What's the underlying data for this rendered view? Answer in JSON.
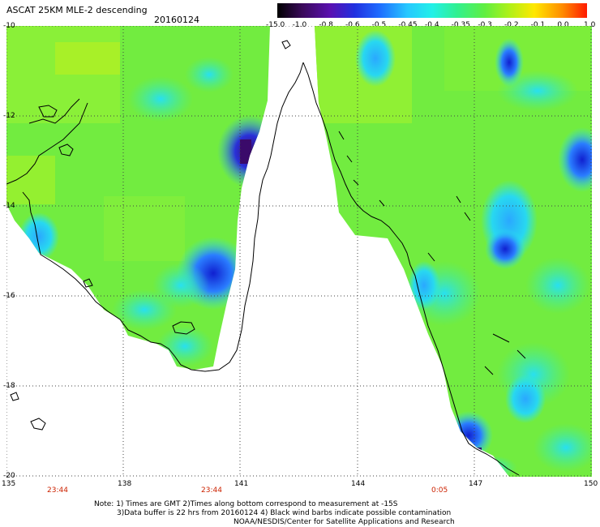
{
  "header": {
    "title": "ASCAT 25KM MLE-2 descending",
    "date": "20160124"
  },
  "colorbar": {
    "labels": [
      "-15.0",
      "-1.0",
      "-0.8",
      "-0.6",
      "-0.5",
      "-0.45",
      "-0.4",
      "-0.35",
      "-0.3",
      "-0.2",
      "-0.1",
      "0.0",
      "1.0"
    ],
    "colors": [
      "#2a0a3a",
      "#5a0f8a",
      "#3b1fd0",
      "#1f5cff",
      "#2aa8ff",
      "#28e8f0",
      "#3cf5a0",
      "#4cf060",
      "#7cf028",
      "#c8f014",
      "#ffe800",
      "#ff8800",
      "#ff2a00"
    ]
  },
  "map": {
    "lat_labels": [
      "-10",
      "-12",
      "-14",
      "-16",
      "-18",
      "-20"
    ],
    "lon_labels": [
      "135",
      "138",
      "141",
      "144",
      "147",
      "150"
    ],
    "time_labels": [
      "23:44",
      "23:44",
      "0:05"
    ],
    "land_color": "#ffffff",
    "ocean_color": "#7ced4a"
  },
  "footer": {
    "note1": "Note: 1) Times are GMT 2)Times along bottom correspond to measurement at -15S",
    "note2": "3)Data buffer is 22 hrs from 20160124 4) Black wind barbs indicate possible contamination",
    "note3": "NOAA/NESDIS/Center for Satellite Applications and Research"
  }
}
